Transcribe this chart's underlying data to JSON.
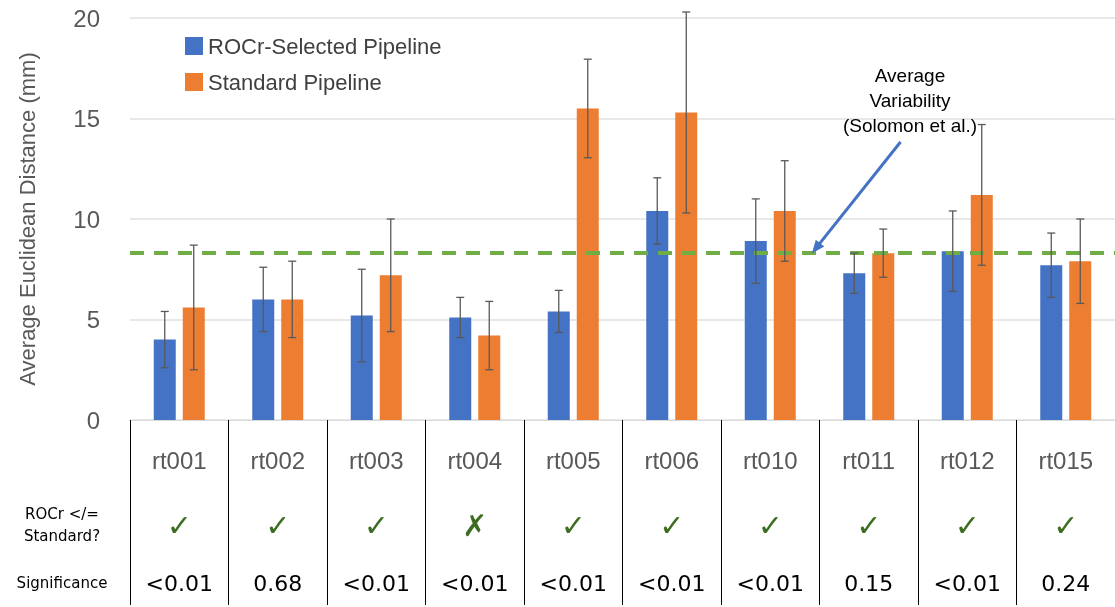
{
  "chart_data": {
    "type": "bar",
    "ylabel": "Average Euclidean Distance (mm)",
    "categories": [
      "rt001",
      "rt002",
      "rt003",
      "rt004",
      "rt005",
      "rt006",
      "rt010",
      "rt011",
      "rt012",
      "rt015"
    ],
    "series": [
      {
        "name": "ROCr-Selected Pipeline",
        "color": "#4472c4",
        "values": [
          4.0,
          6.0,
          5.2,
          5.1,
          5.4,
          10.4,
          8.9,
          7.3,
          8.4,
          7.7
        ],
        "errors": [
          1.4,
          1.6,
          2.3,
          1.0,
          1.05,
          1.65,
          2.1,
          1.0,
          2.0,
          1.6
        ]
      },
      {
        "name": "Standard Pipeline",
        "color": "#ed7d31",
        "values": [
          5.6,
          6.0,
          7.2,
          4.2,
          15.5,
          15.3,
          10.4,
          8.3,
          11.2,
          7.9
        ],
        "errors": [
          3.1,
          1.9,
          2.8,
          1.7,
          2.45,
          5.0,
          2.5,
          1.2,
          3.5,
          2.1
        ]
      }
    ],
    "ylim": [
      0,
      20
    ],
    "yticks": [
      0,
      5,
      10,
      15,
      20
    ],
    "grid": "y",
    "legend": "top left",
    "ref_lines": [
      {
        "axis": "y",
        "value": 8.3,
        "label": "Average Variability (Solomon et al.)",
        "color": "#70ad47",
        "line_style": "dashed"
      }
    ],
    "annotations": [
      "ROCr </= Standard?",
      "Significance",
      "✓",
      "✓",
      "✓",
      "✗",
      "✓",
      "✓",
      "✓",
      "✓",
      "✓",
      "✓",
      "<0.01",
      "0.68",
      "<0.01",
      "<0.01",
      "<0.01",
      "<0.01",
      "<0.01",
      "0.15",
      "<0.01",
      "0.24"
    ]
  }
}
